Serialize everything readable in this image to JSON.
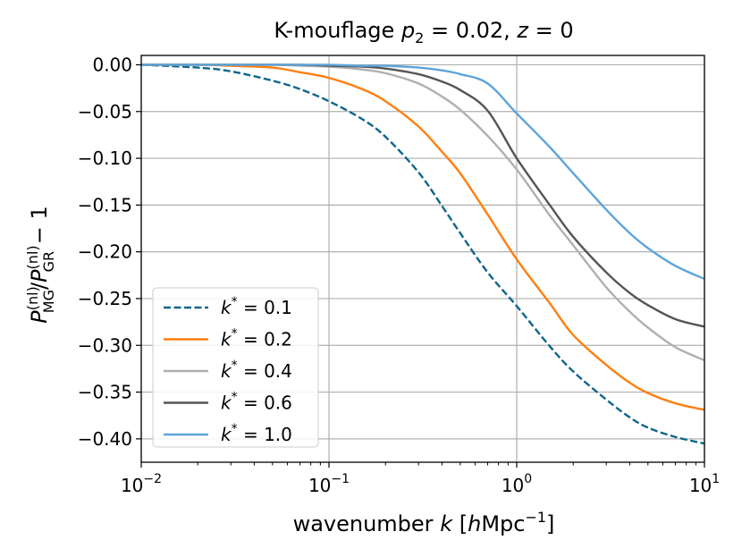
{
  "chart_data": {
    "type": "line",
    "title": "K-mouflage p_2 = 0.02, z = 0",
    "title_parts": {
      "prefix": "K-mouflage ",
      "var": "p",
      "sub": "2",
      "eq1": " = 0.02, ",
      "var2": "z",
      "eq2": " = 0"
    },
    "xlabel": "wavenumber k [hMpc^-1]",
    "xlabel_parts": {
      "prefix": "wavenumber ",
      "var": "k",
      "open": " [",
      "h": "h",
      "unit": "Mpc",
      "sup": "−1",
      "close": "]"
    },
    "ylabel": "P_MG^(nl)/P_GR^(nl) − 1",
    "ylabel_parts": {
      "P": "P",
      "sup": "(nl)",
      "sub1": "MG",
      "slash": "/",
      "sub2": "GR",
      "tail": " − 1"
    },
    "xscale": "log",
    "xlim": [
      0.01,
      10
    ],
    "ylim": [
      -0.425,
      0.01
    ],
    "grid": true,
    "x_ticks": [
      {
        "value": 0.01,
        "base": "10",
        "exp": "−2"
      },
      {
        "value": 0.1,
        "base": "10",
        "exp": "−1"
      },
      {
        "value": 1,
        "base": "10",
        "exp": "0"
      },
      {
        "value": 10,
        "base": "10",
        "exp": "1"
      }
    ],
    "y_ticks": [
      {
        "value": 0.0,
        "label": "0.00"
      },
      {
        "value": -0.05,
        "label": "−0.05"
      },
      {
        "value": -0.1,
        "label": "−0.10"
      },
      {
        "value": -0.15,
        "label": "−0.15"
      },
      {
        "value": -0.2,
        "label": "−0.20"
      },
      {
        "value": -0.25,
        "label": "−0.25"
      },
      {
        "value": -0.3,
        "label": "−0.30"
      },
      {
        "value": -0.35,
        "label": "−0.35"
      },
      {
        "value": -0.4,
        "label": "−0.40"
      }
    ],
    "x": [
      0.01,
      0.02,
      0.03,
      0.05,
      0.07,
      0.1,
      0.15,
      0.2,
      0.3,
      0.4,
      0.5,
      0.7,
      1.0,
      1.5,
      2.0,
      3.0,
      4.0,
      5.0,
      7.0,
      10.0
    ],
    "series": [
      {
        "name": "k* = 0.1",
        "kstar": "0.1",
        "color": "#0e668b",
        "dash": "dashed",
        "values": [
          0.0,
          -0.003,
          -0.007,
          -0.017,
          -0.026,
          -0.039,
          -0.058,
          -0.077,
          -0.115,
          -0.151,
          -0.18,
          -0.222,
          -0.258,
          -0.301,
          -0.328,
          -0.358,
          -0.377,
          -0.388,
          -0.398,
          -0.405
        ]
      },
      {
        "name": "k* = 0.2",
        "kstar": "0.2",
        "color": "#ff7f0e",
        "dash": "solid",
        "values": [
          0.0,
          0.0,
          -0.001,
          -0.003,
          -0.008,
          -0.014,
          -0.026,
          -0.039,
          -0.066,
          -0.093,
          -0.116,
          -0.16,
          -0.208,
          -0.255,
          -0.289,
          -0.321,
          -0.34,
          -0.351,
          -0.362,
          -0.369
        ]
      },
      {
        "name": "k* = 0.4",
        "kstar": "0.4",
        "color": "#b0b0b0",
        "dash": "solid",
        "values": [
          0.0,
          0.0,
          0.0,
          0.0,
          -0.001,
          -0.002,
          -0.005,
          -0.009,
          -0.02,
          -0.034,
          -0.048,
          -0.076,
          -0.112,
          -0.161,
          -0.193,
          -0.238,
          -0.264,
          -0.281,
          -0.302,
          -0.316
        ]
      },
      {
        "name": "k* = 0.6",
        "kstar": "0.6",
        "color": "#555555",
        "dash": "solid",
        "values": [
          0.0,
          0.0,
          0.0,
          0.0,
          0.0,
          -0.001,
          -0.002,
          -0.004,
          -0.01,
          -0.018,
          -0.027,
          -0.049,
          -0.1,
          -0.15,
          -0.184,
          -0.222,
          -0.244,
          -0.257,
          -0.272,
          -0.28
        ]
      },
      {
        "name": "k* = 1.0",
        "kstar": "1.0",
        "color": "#5da5da",
        "dash": "solid",
        "values": [
          0.0,
          0.0,
          0.0,
          0.0,
          0.0,
          0.0,
          -0.001,
          -0.001,
          -0.003,
          -0.006,
          -0.01,
          -0.02,
          -0.052,
          -0.088,
          -0.116,
          -0.155,
          -0.18,
          -0.196,
          -0.215,
          -0.229
        ]
      }
    ],
    "legend": {
      "placement": "lower-left",
      "prefix": "k",
      "sup": "*",
      "eq": " = "
    }
  }
}
